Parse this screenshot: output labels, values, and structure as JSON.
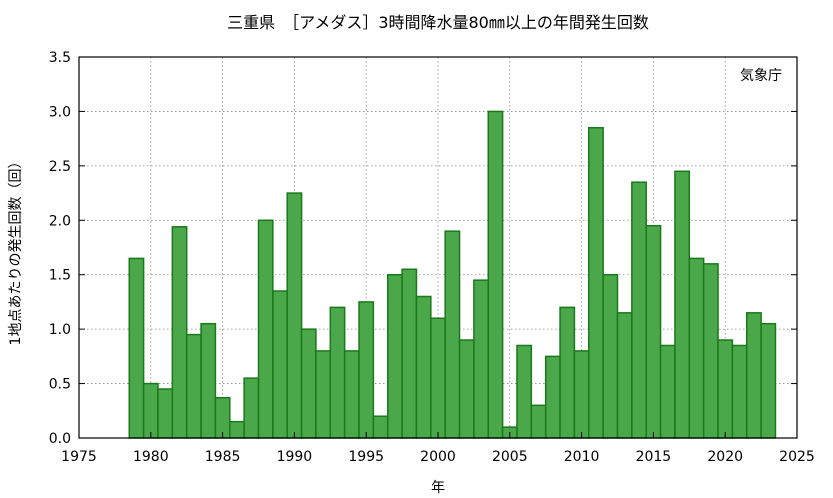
{
  "chart_data": {
    "type": "bar",
    "title": "三重県　［アメダス］3時間降水量80㎜以上の年間発生回数",
    "xlabel": "年",
    "ylabel": "1地点あたりの発生回数（回）",
    "source_label": "気象庁",
    "xlim": [
      1975,
      2025
    ],
    "ylim": [
      0,
      3.5
    ],
    "x_ticks": [
      1975,
      1980,
      1985,
      1990,
      1995,
      2000,
      2005,
      2010,
      2015,
      2020,
      2025
    ],
    "y_ticks": [
      "0.0",
      "0.5",
      "1.0",
      "1.5",
      "2.0",
      "2.5",
      "3.0",
      "3.5"
    ],
    "grid": true,
    "bar_color": "#4aa84a",
    "bar_edge_color": "#1a7a1a",
    "years": [
      1979,
      1980,
      1981,
      1982,
      1983,
      1984,
      1985,
      1986,
      1987,
      1988,
      1989,
      1990,
      1991,
      1992,
      1993,
      1994,
      1995,
      1996,
      1997,
      1998,
      1999,
      2000,
      2001,
      2002,
      2003,
      2004,
      2005,
      2006,
      2007,
      2008,
      2009,
      2010,
      2011,
      2012,
      2013,
      2014,
      2015,
      2016,
      2017,
      2018,
      2019,
      2020,
      2021,
      2022,
      2023
    ],
    "values": [
      1.65,
      0.5,
      0.45,
      1.94,
      0.95,
      1.05,
      0.37,
      0.15,
      0.55,
      2.0,
      1.35,
      2.25,
      1.0,
      0.8,
      1.2,
      0.8,
      1.25,
      0.2,
      1.5,
      1.55,
      1.3,
      1.1,
      1.9,
      0.9,
      1.45,
      3.0,
      0.1,
      0.85,
      0.3,
      0.75,
      1.2,
      0.8,
      2.85,
      1.5,
      1.15,
      2.35,
      1.95,
      0.85,
      2.45,
      1.65,
      1.6,
      0.9,
      0.85,
      1.15,
      1.05
    ]
  }
}
